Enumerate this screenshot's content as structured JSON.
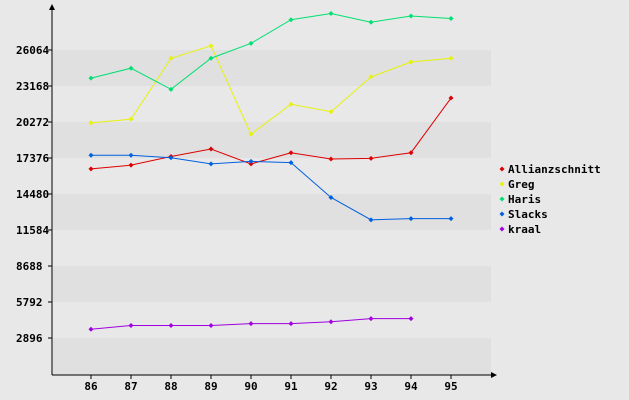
{
  "chart_data": {
    "type": "line",
    "x": [
      86,
      87,
      88,
      89,
      90,
      91,
      92,
      93,
      94,
      95
    ],
    "y_ticks": [
      2896,
      5792,
      8688,
      11584,
      14480,
      17376,
      20272,
      23168,
      26064
    ],
    "ylim": [
      0,
      29000
    ],
    "grid": "horizontal bands",
    "legend_position": "right",
    "series": [
      {
        "name": "Allianzschnitt",
        "color": "#dd0000",
        "values": [
          16500,
          16800,
          17500,
          18100,
          16900,
          17800,
          17300,
          17350,
          17800,
          22200
        ]
      },
      {
        "name": "Greg",
        "color": "#e6f20a",
        "values": [
          20200,
          20500,
          25400,
          26400,
          19300,
          21700,
          21100,
          23900,
          25100,
          25400
        ]
      },
      {
        "name": "Haris",
        "color": "#00e070",
        "values": [
          23800,
          24600,
          22900,
          25400,
          26600,
          28500,
          29000,
          28300,
          28800,
          28600
        ]
      },
      {
        "name": "Slacks",
        "color": "#0060e0",
        "values": [
          17600,
          17600,
          17400,
          16900,
          17100,
          17000,
          14200,
          12400,
          12500,
          12500
        ]
      },
      {
        "name": "kraal",
        "color": "#a000e0",
        "values": [
          3600,
          3900,
          3900,
          3900,
          4050,
          4050,
          4200,
          4450,
          4450,
          null
        ]
      }
    ]
  }
}
